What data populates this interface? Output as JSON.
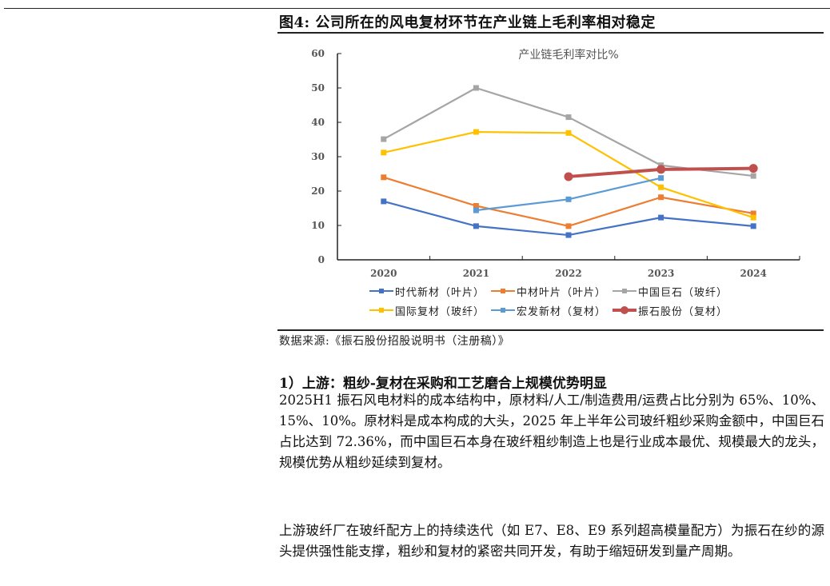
{
  "header": {
    "figure_title": "图4:  公司所在的风电复材环节在产业链上毛利率相对稳定"
  },
  "chart_data": {
    "type": "line",
    "title": "产业链毛利率对比%",
    "xlabel": "",
    "ylabel": "",
    "categories": [
      "2020",
      "2021",
      "2022",
      "2023",
      "2024"
    ],
    "ylim": [
      0,
      60
    ],
    "yticks": [
      0,
      10,
      20,
      30,
      40,
      50,
      60
    ],
    "grid": false,
    "legend_position": "bottom",
    "series": [
      {
        "name": "时代新材（叶片）",
        "color": "#4472C4",
        "marker": "square",
        "values": [
          17.0,
          9.8,
          7.2,
          12.3,
          9.8
        ]
      },
      {
        "name": "中材叶片（叶片）",
        "color": "#ED7D31",
        "marker": "square",
        "values": [
          24.0,
          15.7,
          9.8,
          18.2,
          13.5
        ]
      },
      {
        "name": "中国巨石（玻纤）",
        "color": "#A5A5A5",
        "marker": "square",
        "values": [
          35.1,
          50.0,
          41.5,
          27.5,
          24.4
        ]
      },
      {
        "name": "国际复材（玻纤）",
        "color": "#FFC000",
        "marker": "square",
        "values": [
          31.2,
          37.2,
          36.9,
          21.1,
          12.3
        ]
      },
      {
        "name": "宏发新材（复材）",
        "color": "#5B9BD5",
        "marker": "square",
        "values": [
          null,
          14.4,
          17.6,
          23.8,
          null
        ]
      },
      {
        "name": "振石股份（复材）",
        "color": "#C0504D",
        "marker": "circle",
        "values": [
          null,
          null,
          24.2,
          26.3,
          26.6
        ]
      }
    ]
  },
  "source": {
    "text": "数据来源:《振石股份招股说明书（注册稿）》"
  },
  "body": {
    "section_heading": "1）上游：粗纱-复材在采购和工艺磨合上规模优势明显",
    "paragraph_1": "2025H1 振石风电材料的成本结构中，原材料/人工/制造费用/运费占比分别为 65%、10%、15%、10%。原材料是成本构成的大头，2025 年上半年公司玻纤粗纱采购金额中，中国巨石占比达到 72.36%，而中国巨石本身在玻纤粗纱制造上也是行业成本最优、规模最大的龙头，规模优势从粗纱延续到复材。",
    "paragraph_2": "上游玻纤厂在玻纤配方上的持续迭代（如 E7、E8、E9 系列超高模量配方）为振石在纱的源头提供强性能支撑，粗纱和复材的紧密共同开发，有助于缩短研发到量产周期。"
  }
}
